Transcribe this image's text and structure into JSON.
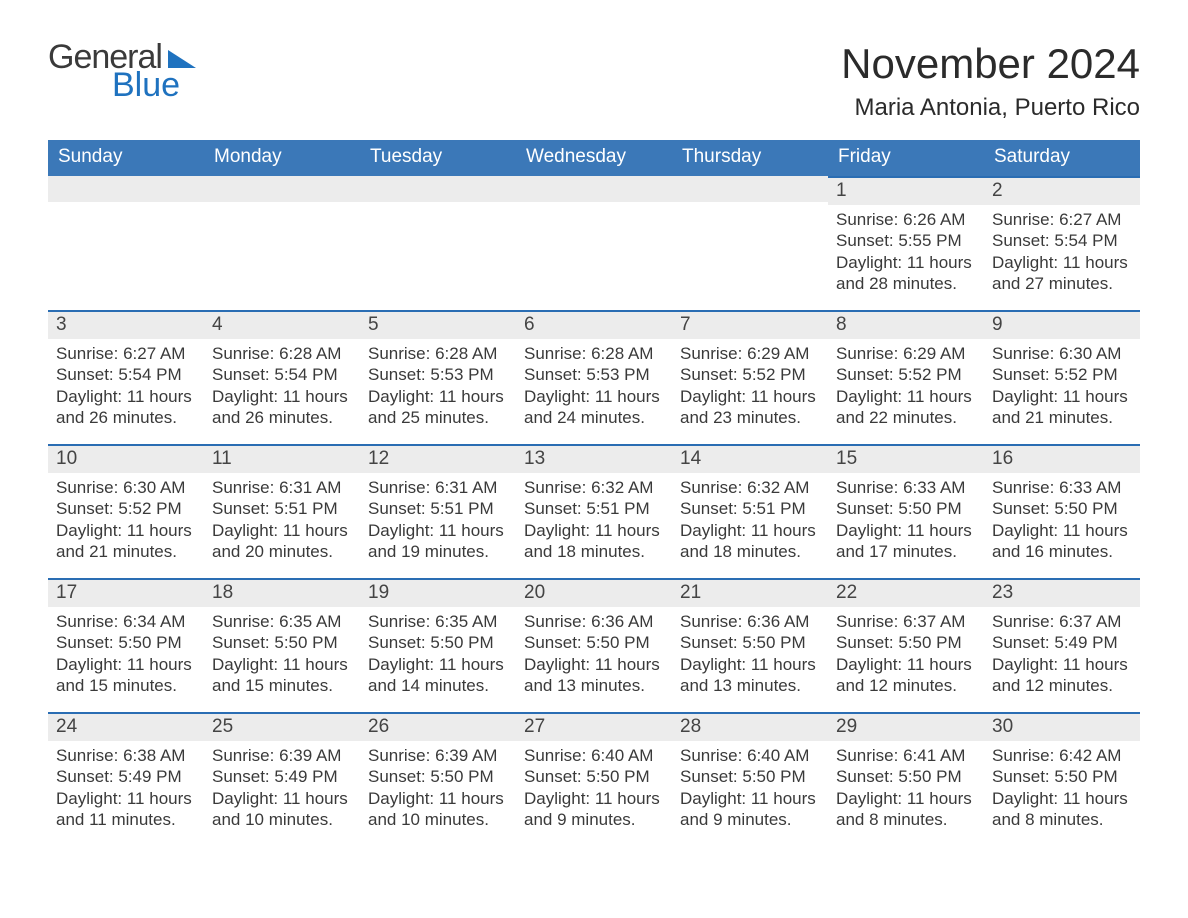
{
  "brand": {
    "word1": "General",
    "word2": "Blue"
  },
  "title": "November 2024",
  "location": "Maria Antonia, Puerto Rico",
  "colors": {
    "header_blue": "#3b78b8",
    "accent_blue": "#2a6db3",
    "light_gray": "#ececec",
    "logo_blue": "#1f72bf",
    "text_dark": "#2b2b2b"
  },
  "calendar": {
    "day_headers": [
      "Sunday",
      "Monday",
      "Tuesday",
      "Wednesday",
      "Thursday",
      "Friday",
      "Saturday"
    ],
    "weeks": [
      [
        null,
        null,
        null,
        null,
        null,
        {
          "day": "1",
          "sunrise": "Sunrise: 6:26 AM",
          "sunset": "Sunset: 5:55 PM",
          "daylight": "Daylight: 11 hours and 28 minutes."
        },
        {
          "day": "2",
          "sunrise": "Sunrise: 6:27 AM",
          "sunset": "Sunset: 5:54 PM",
          "daylight": "Daylight: 11 hours and 27 minutes."
        }
      ],
      [
        {
          "day": "3",
          "sunrise": "Sunrise: 6:27 AM",
          "sunset": "Sunset: 5:54 PM",
          "daylight": "Daylight: 11 hours and 26 minutes."
        },
        {
          "day": "4",
          "sunrise": "Sunrise: 6:28 AM",
          "sunset": "Sunset: 5:54 PM",
          "daylight": "Daylight: 11 hours and 26 minutes."
        },
        {
          "day": "5",
          "sunrise": "Sunrise: 6:28 AM",
          "sunset": "Sunset: 5:53 PM",
          "daylight": "Daylight: 11 hours and 25 minutes."
        },
        {
          "day": "6",
          "sunrise": "Sunrise: 6:28 AM",
          "sunset": "Sunset: 5:53 PM",
          "daylight": "Daylight: 11 hours and 24 minutes."
        },
        {
          "day": "7",
          "sunrise": "Sunrise: 6:29 AM",
          "sunset": "Sunset: 5:52 PM",
          "daylight": "Daylight: 11 hours and 23 minutes."
        },
        {
          "day": "8",
          "sunrise": "Sunrise: 6:29 AM",
          "sunset": "Sunset: 5:52 PM",
          "daylight": "Daylight: 11 hours and 22 minutes."
        },
        {
          "day": "9",
          "sunrise": "Sunrise: 6:30 AM",
          "sunset": "Sunset: 5:52 PM",
          "daylight": "Daylight: 11 hours and 21 minutes."
        }
      ],
      [
        {
          "day": "10",
          "sunrise": "Sunrise: 6:30 AM",
          "sunset": "Sunset: 5:52 PM",
          "daylight": "Daylight: 11 hours and 21 minutes."
        },
        {
          "day": "11",
          "sunrise": "Sunrise: 6:31 AM",
          "sunset": "Sunset: 5:51 PM",
          "daylight": "Daylight: 11 hours and 20 minutes."
        },
        {
          "day": "12",
          "sunrise": "Sunrise: 6:31 AM",
          "sunset": "Sunset: 5:51 PM",
          "daylight": "Daylight: 11 hours and 19 minutes."
        },
        {
          "day": "13",
          "sunrise": "Sunrise: 6:32 AM",
          "sunset": "Sunset: 5:51 PM",
          "daylight": "Daylight: 11 hours and 18 minutes."
        },
        {
          "day": "14",
          "sunrise": "Sunrise: 6:32 AM",
          "sunset": "Sunset: 5:51 PM",
          "daylight": "Daylight: 11 hours and 18 minutes."
        },
        {
          "day": "15",
          "sunrise": "Sunrise: 6:33 AM",
          "sunset": "Sunset: 5:50 PM",
          "daylight": "Daylight: 11 hours and 17 minutes."
        },
        {
          "day": "16",
          "sunrise": "Sunrise: 6:33 AM",
          "sunset": "Sunset: 5:50 PM",
          "daylight": "Daylight: 11 hours and 16 minutes."
        }
      ],
      [
        {
          "day": "17",
          "sunrise": "Sunrise: 6:34 AM",
          "sunset": "Sunset: 5:50 PM",
          "daylight": "Daylight: 11 hours and 15 minutes."
        },
        {
          "day": "18",
          "sunrise": "Sunrise: 6:35 AM",
          "sunset": "Sunset: 5:50 PM",
          "daylight": "Daylight: 11 hours and 15 minutes."
        },
        {
          "day": "19",
          "sunrise": "Sunrise: 6:35 AM",
          "sunset": "Sunset: 5:50 PM",
          "daylight": "Daylight: 11 hours and 14 minutes."
        },
        {
          "day": "20",
          "sunrise": "Sunrise: 6:36 AM",
          "sunset": "Sunset: 5:50 PM",
          "daylight": "Daylight: 11 hours and 13 minutes."
        },
        {
          "day": "21",
          "sunrise": "Sunrise: 6:36 AM",
          "sunset": "Sunset: 5:50 PM",
          "daylight": "Daylight: 11 hours and 13 minutes."
        },
        {
          "day": "22",
          "sunrise": "Sunrise: 6:37 AM",
          "sunset": "Sunset: 5:50 PM",
          "daylight": "Daylight: 11 hours and 12 minutes."
        },
        {
          "day": "23",
          "sunrise": "Sunrise: 6:37 AM",
          "sunset": "Sunset: 5:49 PM",
          "daylight": "Daylight: 11 hours and 12 minutes."
        }
      ],
      [
        {
          "day": "24",
          "sunrise": "Sunrise: 6:38 AM",
          "sunset": "Sunset: 5:49 PM",
          "daylight": "Daylight: 11 hours and 11 minutes."
        },
        {
          "day": "25",
          "sunrise": "Sunrise: 6:39 AM",
          "sunset": "Sunset: 5:49 PM",
          "daylight": "Daylight: 11 hours and 10 minutes."
        },
        {
          "day": "26",
          "sunrise": "Sunrise: 6:39 AM",
          "sunset": "Sunset: 5:50 PM",
          "daylight": "Daylight: 11 hours and 10 minutes."
        },
        {
          "day": "27",
          "sunrise": "Sunrise: 6:40 AM",
          "sunset": "Sunset: 5:50 PM",
          "daylight": "Daylight: 11 hours and 9 minutes."
        },
        {
          "day": "28",
          "sunrise": "Sunrise: 6:40 AM",
          "sunset": "Sunset: 5:50 PM",
          "daylight": "Daylight: 11 hours and 9 minutes."
        },
        {
          "day": "29",
          "sunrise": "Sunrise: 6:41 AM",
          "sunset": "Sunset: 5:50 PM",
          "daylight": "Daylight: 11 hours and 8 minutes."
        },
        {
          "day": "30",
          "sunrise": "Sunrise: 6:42 AM",
          "sunset": "Sunset: 5:50 PM",
          "daylight": "Daylight: 11 hours and 8 minutes."
        }
      ]
    ]
  }
}
